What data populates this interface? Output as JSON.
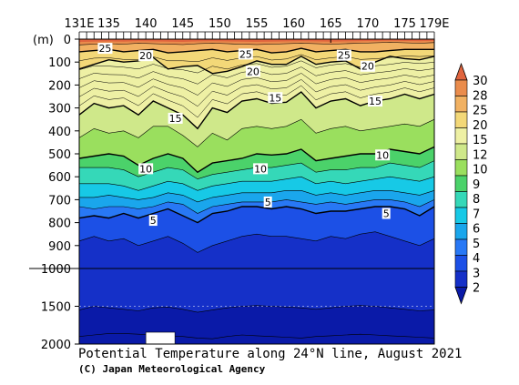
{
  "chart_data": {
    "type": "contour",
    "title": "Potential Temperature along 24°N line, August 2021",
    "credit": "(C) Japan Meteorological Agency",
    "x_axis": {
      "tick_labels": [
        "131E",
        "135",
        "140",
        "145",
        "150",
        "155",
        "160",
        "165",
        "170",
        "175",
        "179E"
      ],
      "tick_values": [
        131,
        135,
        140,
        145,
        150,
        155,
        160,
        165,
        170,
        175,
        179
      ],
      "range": [
        131,
        179
      ]
    },
    "y_axis": {
      "unit_label": "(m)",
      "upper_tick_labels": [
        "0",
        "100",
        "200",
        "300",
        "400",
        "500",
        "600",
        "700",
        "800",
        "900",
        "1000"
      ],
      "upper_range": [
        0,
        1000
      ],
      "lower_tick_labels": [
        "1500",
        "2000"
      ],
      "lower_range": [
        1000,
        2000
      ]
    },
    "colorbar": {
      "levels": [
        "2",
        "3",
        "4",
        "5",
        "6",
        "7",
        "8",
        "9",
        "10",
        "12",
        "15",
        "20",
        "25",
        "28",
        "30"
      ],
      "level_values": [
        2,
        3,
        4,
        5,
        6,
        7,
        8,
        9,
        10,
        12,
        15,
        20,
        25,
        28,
        30
      ],
      "colors": [
        "#0a1aa8",
        "#1530c8",
        "#1c50e6",
        "#2878f5",
        "#1aa6ec",
        "#17c9e6",
        "#35d8b8",
        "#4bd26a",
        "#9adf5e",
        "#cfe88a",
        "#eef0a4",
        "#f3d878",
        "#f1b162",
        "#ea8c4c",
        "#e0643e"
      ]
    },
    "contour_labels": [
      {
        "value": "25",
        "lon": 134.5,
        "depth": 40
      },
      {
        "value": "25",
        "lon": 153.5,
        "depth": 65
      },
      {
        "value": "25",
        "lon": 166.8,
        "depth": 70
      },
      {
        "value": "20",
        "lon": 140.0,
        "depth": 72
      },
      {
        "value": "20",
        "lon": 154.5,
        "depth": 140
      },
      {
        "value": "20",
        "lon": 170.0,
        "depth": 118
      },
      {
        "value": "15",
        "lon": 144.0,
        "depth": 345
      },
      {
        "value": "15",
        "lon": 157.5,
        "depth": 255
      },
      {
        "value": "15",
        "lon": 171.0,
        "depth": 270
      },
      {
        "value": "10",
        "lon": 140.0,
        "depth": 565
      },
      {
        "value": "10",
        "lon": 155.5,
        "depth": 565
      },
      {
        "value": "10",
        "lon": 172.0,
        "depth": 505
      },
      {
        "value": "5",
        "lon": 141.0,
        "depth": 790
      },
      {
        "value": "5",
        "lon": 156.5,
        "depth": 710
      },
      {
        "value": "5",
        "lon": 172.5,
        "depth": 760
      }
    ],
    "isotherms": [
      {
        "value": 28,
        "depths": [
          25,
          22,
          20,
          22,
          18,
          20,
          22,
          24,
          20,
          18,
          20,
          22,
          24,
          22,
          20,
          18,
          20,
          22,
          20,
          18,
          16,
          14,
          16,
          18,
          15
        ]
      },
      {
        "value": 25,
        "depths": [
          55,
          50,
          45,
          55,
          50,
          45,
          60,
          55,
          50,
          45,
          55,
          50,
          45,
          60,
          55,
          40,
          55,
          50,
          45,
          55,
          55,
          50,
          45,
          45,
          45
        ]
      },
      {
        "value": 20,
        "depths": [
          130,
          110,
          90,
          100,
          95,
          80,
          130,
          120,
          115,
          150,
          140,
          120,
          95,
          110,
          110,
          75,
          110,
          100,
          95,
          130,
          100,
          75,
          85,
          90,
          75
        ]
      },
      {
        "value": 15,
        "depths": [
          330,
          280,
          300,
          290,
          330,
          270,
          300,
          330,
          390,
          300,
          320,
          270,
          260,
          280,
          275,
          230,
          300,
          270,
          260,
          290,
          270,
          260,
          240,
          260,
          240
        ]
      },
      {
        "value": 12,
        "depths": [
          430,
          390,
          410,
          400,
          430,
          380,
          380,
          420,
          470,
          410,
          440,
          390,
          380,
          390,
          380,
          350,
          410,
          390,
          380,
          400,
          390,
          380,
          370,
          380,
          350
        ]
      },
      {
        "value": 10,
        "depths": [
          520,
          510,
          500,
          510,
          550,
          520,
          500,
          520,
          580,
          540,
          530,
          520,
          500,
          505,
          500,
          480,
          530,
          520,
          510,
          500,
          500,
          480,
          490,
          500,
          470
        ]
      },
      {
        "value": 9,
        "depths": [
          560,
          560,
          560,
          570,
          600,
          580,
          560,
          570,
          610,
          590,
          580,
          570,
          560,
          560,
          550,
          540,
          580,
          570,
          570,
          560,
          560,
          540,
          550,
          560,
          530
        ]
      },
      {
        "value": 8,
        "depths": [
          630,
          630,
          630,
          640,
          660,
          640,
          620,
          630,
          660,
          640,
          630,
          620,
          620,
          620,
          610,
          600,
          630,
          620,
          630,
          620,
          610,
          600,
          610,
          620,
          600
        ]
      },
      {
        "value": 7,
        "depths": [
          690,
          690,
          680,
          690,
          700,
          690,
          670,
          680,
          710,
          690,
          680,
          670,
          670,
          670,
          660,
          660,
          680,
          670,
          680,
          670,
          660,
          660,
          670,
          680,
          660
        ]
      },
      {
        "value": 6,
        "depths": [
          730,
          740,
          730,
          730,
          740,
          730,
          710,
          720,
          760,
          730,
          720,
          710,
          710,
          710,
          700,
          710,
          720,
          710,
          720,
          710,
          700,
          700,
          710,
          730,
          700
        ]
      },
      {
        "value": 5,
        "depths": [
          780,
          770,
          780,
          760,
          780,
          760,
          740,
          770,
          800,
          760,
          750,
          730,
          730,
          740,
          730,
          740,
          760,
          750,
          750,
          740,
          730,
          730,
          740,
          770,
          730
        ]
      },
      {
        "value": 4,
        "depths": [
          880,
          860,
          880,
          870,
          900,
          880,
          860,
          890,
          930,
          900,
          880,
          860,
          850,
          860,
          860,
          870,
          880,
          860,
          870,
          850,
          840,
          860,
          880,
          900,
          870
        ]
      },
      {
        "value": 3,
        "depths": [
          1550,
          1500,
          1520,
          1540,
          1560,
          1520,
          1510,
          1540,
          1580,
          1550,
          1520,
          1500,
          1490,
          1500,
          1510,
          1520,
          1540,
          1520,
          1500,
          1490,
          1500,
          1520,
          1540,
          1560,
          1550
        ]
      },
      {
        "value": 2,
        "depths": [
          1900,
          1880,
          1860,
          1860,
          1870,
          1880,
          1890,
          1900,
          1920,
          1930,
          1900,
          1880,
          1890,
          1900,
          1910,
          1920,
          1900,
          1890,
          1880,
          1870,
          1880,
          1890,
          1900,
          1910,
          1920
        ]
      }
    ]
  }
}
